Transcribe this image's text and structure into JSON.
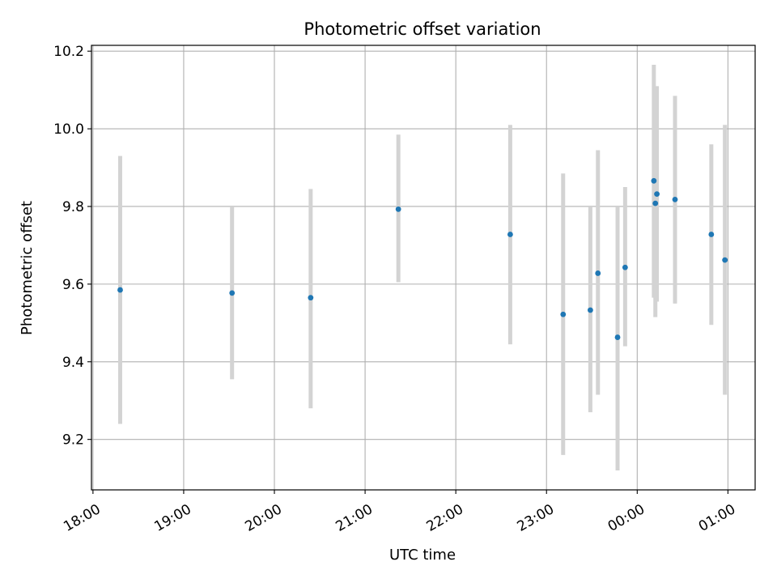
{
  "chart_data": {
    "type": "scatter",
    "title": "Photometric offset variation",
    "xlabel": "UTC time",
    "ylabel": "Photometric offset",
    "x_tick_labels": [
      "18:00",
      "19:00",
      "20:00",
      "21:00",
      "22:00",
      "23:00",
      "00:00",
      "01:00"
    ],
    "y_ticks": [
      9.2,
      9.4,
      9.6,
      9.8,
      10.0,
      10.2
    ],
    "y_tick_labels": [
      "9.2",
      "9.4",
      "9.6",
      "9.8",
      "10.0",
      "10.2"
    ],
    "xlim": [
      "17:59",
      "01:18"
    ],
    "ylim": [
      9.07,
      10.215
    ],
    "grid": true,
    "point_color": "#1f77b4",
    "errorbar_color": "#d3d3d3",
    "points": [
      {
        "time": "18:18",
        "y": 9.585,
        "ylow": 9.24,
        "yhigh": 9.93
      },
      {
        "time": "19:32",
        "y": 9.577,
        "ylow": 9.355,
        "yhigh": 9.8
      },
      {
        "time": "20:24",
        "y": 9.565,
        "ylow": 9.28,
        "yhigh": 9.845
      },
      {
        "time": "21:22",
        "y": 9.793,
        "ylow": 9.605,
        "yhigh": 9.985
      },
      {
        "time": "22:36",
        "y": 9.728,
        "ylow": 9.445,
        "yhigh": 10.01
      },
      {
        "time": "23:11",
        "y": 9.522,
        "ylow": 9.16,
        "yhigh": 9.885
      },
      {
        "time": "23:29",
        "y": 9.533,
        "ylow": 9.27,
        "yhigh": 9.8
      },
      {
        "time": "23:34",
        "y": 9.628,
        "ylow": 9.315,
        "yhigh": 9.945
      },
      {
        "time": "23:47",
        "y": 9.463,
        "ylow": 9.12,
        "yhigh": 9.8
      },
      {
        "time": "23:52",
        "y": 9.643,
        "ylow": 9.44,
        "yhigh": 9.85
      },
      {
        "time": "00:11",
        "y": 9.866,
        "ylow": 9.565,
        "yhigh": 10.165
      },
      {
        "time": "00:12",
        "y": 9.808,
        "ylow": 9.515,
        "yhigh": 10.105
      },
      {
        "time": "00:13",
        "y": 9.832,
        "ylow": 9.555,
        "yhigh": 10.11
      },
      {
        "time": "00:25",
        "y": 9.818,
        "ylow": 9.55,
        "yhigh": 10.085
      },
      {
        "time": "00:49",
        "y": 9.728,
        "ylow": 9.495,
        "yhigh": 9.96
      },
      {
        "time": "00:58",
        "y": 9.662,
        "ylow": 9.315,
        "yhigh": 10.01
      }
    ]
  }
}
